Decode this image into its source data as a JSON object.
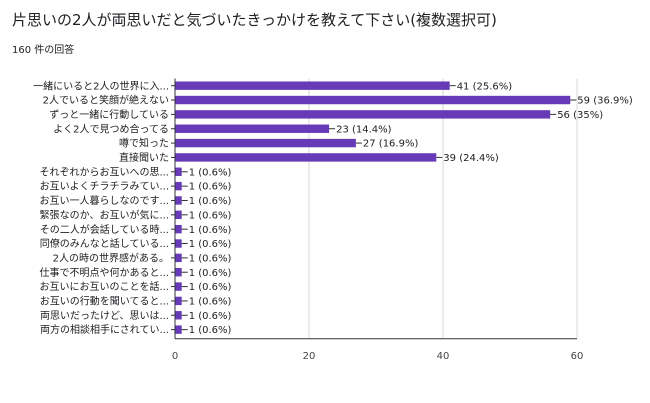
{
  "header": {
    "title": "片思いの2人が両思いだと気づいたきっかけを教えて下さい(複数選択可)",
    "response_count": "160 件の回答"
  },
  "chart_data": {
    "type": "bar",
    "orientation": "horizontal",
    "categories": [
      "一緒にいると2人の世界に入...",
      "2人でいると笑顔が絶えない",
      "ずっと一緒に行動している",
      "よく2人で見つめ合ってる",
      "噂で知った",
      "直接聞いた",
      "それぞれからお互いへの思...",
      "お互いよくチラチラみてい...",
      "お互い一人暮らしなのです...",
      "緊張なのか、お互いが気に...",
      "その二人が会話している時...",
      "同僚のみんなと話している...",
      "2人の時の世界感がある。",
      "仕事で不明点や何かあると...",
      "お互いにお互いのことを話...",
      "お互いの行動を聞いてると...",
      "両思いだったけど、思いは...",
      "両方の相談相手にされてい..."
    ],
    "values": [
      41,
      59,
      56,
      23,
      27,
      39,
      1,
      1,
      1,
      1,
      1,
      1,
      1,
      1,
      1,
      1,
      1,
      1
    ],
    "value_labels": [
      "41 (25.6%)",
      "59 (36.9%)",
      "56 (35%)",
      "23 (14.4%)",
      "27 (16.9%)",
      "39 (24.4%)",
      "1 (0.6%)",
      "1 (0.6%)",
      "1 (0.6%)",
      "1 (0.6%)",
      "1 (0.6%)",
      "1 (0.6%)",
      "1 (0.6%)",
      "1 (0.6%)",
      "1 (0.6%)",
      "1 (0.6%)",
      "1 (0.6%)",
      "1 (0.6%)"
    ],
    "xlim": [
      0,
      60
    ],
    "xticks": [
      0,
      20,
      40,
      60
    ],
    "grid": true,
    "colors": {
      "bar": "#673ab7",
      "grid": "#d9d9d9",
      "axis": "#333333"
    }
  }
}
